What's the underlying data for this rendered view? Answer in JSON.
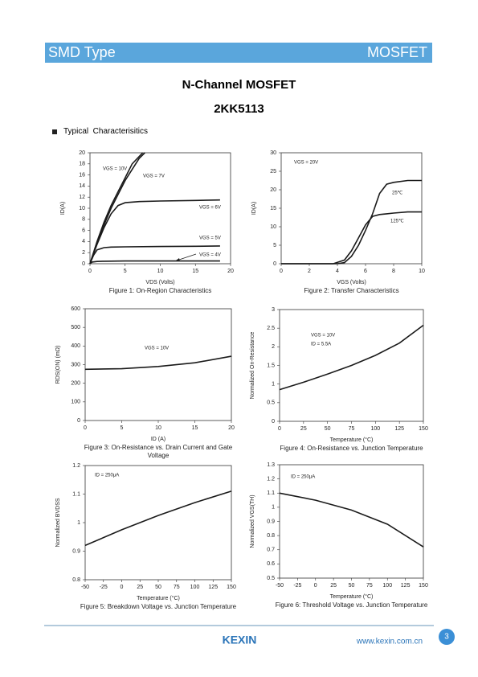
{
  "header": {
    "left": "SMD Type",
    "right": "MOSFET"
  },
  "title": "N-Channel MOSFET",
  "part": "2KK5113",
  "section": "Typical  Characterisitics",
  "footer": {
    "logo": "KEXIN",
    "url": "www.kexin.com.cn",
    "page": "3"
  },
  "chart_data": [
    {
      "type": "line",
      "title": "Figure 1: On-Region Characteristics",
      "xlabel": "VDS (Volts)",
      "ylabel": "ID(A)",
      "color": "#1a1a1a",
      "xlim": [
        0,
        20
      ],
      "ylim": [
        0,
        20
      ],
      "xticks": [
        0,
        5,
        10,
        15,
        20
      ],
      "yticks": [
        0,
        2,
        4,
        6,
        8,
        10,
        12,
        14,
        16,
        18,
        20
      ],
      "series": [
        {
          "name": "VGS = 10V",
          "x": [
            0,
            1,
            2,
            3,
            4,
            5,
            6,
            7.5
          ],
          "values": [
            0,
            4,
            7.5,
            10.5,
            13,
            15.5,
            18,
            20
          ]
        },
        {
          "name": "VGS = 7V",
          "x": [
            0,
            1,
            2,
            3,
            4,
            5,
            6,
            7,
            7.8
          ],
          "values": [
            0,
            3.8,
            7,
            10,
            12.5,
            15,
            17,
            19,
            20
          ]
        },
        {
          "name": "VGS = 6V",
          "x": [
            0,
            1,
            2,
            3,
            4,
            5,
            7,
            10,
            15,
            18.5
          ],
          "values": [
            0,
            3.5,
            6.5,
            9,
            10.5,
            11,
            11.2,
            11.3,
            11.4,
            11.5
          ]
        },
        {
          "name": "VGS = 5V",
          "x": [
            0,
            0.5,
            1,
            2,
            3,
            5,
            10,
            15,
            18.5
          ],
          "values": [
            0,
            1.5,
            2.5,
            2.9,
            3,
            3.05,
            3.1,
            3.15,
            3.2
          ]
        },
        {
          "name": "VGS = 4V",
          "x": [
            0,
            0.3,
            1,
            2,
            5,
            10,
            15,
            18.5
          ],
          "values": [
            0,
            0.3,
            0.4,
            0.45,
            0.5,
            0.5,
            0.5,
            0.5
          ]
        }
      ]
    },
    {
      "type": "line",
      "title": "Figure 2: Transfer Characteristics",
      "xlabel": "VGS (Volts)",
      "ylabel": "ID(A)",
      "color": "#1a1a1a",
      "xlim": [
        0,
        10
      ],
      "ylim": [
        0,
        30
      ],
      "xticks": [
        0,
        2,
        4,
        6,
        8,
        10
      ],
      "yticks": [
        0,
        5,
        10,
        15,
        20,
        25,
        30
      ],
      "annotations": [
        "VGS = 20V"
      ],
      "series": [
        {
          "name": "25℃",
          "x": [
            0,
            3,
            4,
            4.5,
            5,
            5.5,
            6,
            6.5,
            7,
            7.5,
            8,
            9,
            10
          ],
          "values": [
            0,
            0,
            0,
            0.3,
            2,
            5,
            9,
            13.5,
            19,
            21.5,
            22,
            22.5,
            22.5
          ]
        },
        {
          "name": "125℃",
          "x": [
            0,
            3,
            3.7,
            4.5,
            5,
            5.5,
            6,
            6.5,
            7,
            7.5,
            8,
            9,
            10
          ],
          "values": [
            0,
            0,
            0,
            1,
            3.5,
            7,
            10.5,
            12.8,
            13.3,
            13.5,
            13.7,
            14,
            14
          ]
        }
      ]
    },
    {
      "type": "line",
      "title": "Figure 3: On-Resistance vs. Drain Current and Gate Voltage",
      "xlabel": "ID (A)",
      "ylabel": "RDS(ON) (mΩ)",
      "color": "#1a1a1a",
      "xlim": [
        0,
        20
      ],
      "ylim": [
        0,
        600
      ],
      "xticks": [
        0,
        5,
        10,
        15,
        20
      ],
      "yticks": [
        0,
        100,
        200,
        300,
        400,
        500,
        600
      ],
      "annotations": [
        "VGS = 10V"
      ],
      "series": [
        {
          "x": [
            0,
            5,
            10,
            15,
            20
          ],
          "values": [
            275,
            278,
            290,
            310,
            345
          ]
        }
      ]
    },
    {
      "type": "line",
      "title": "Figure 4: On-Resistance vs. Junction Temperature",
      "xlabel": "Temperature (°C)",
      "ylabel": "Normalized On-Resistance",
      "color": "#1a1a1a",
      "xlim": [
        0,
        150
      ],
      "ylim": [
        0,
        3
      ],
      "xticks": [
        0,
        25,
        50,
        75,
        100,
        125,
        150
      ],
      "yticks": [
        0,
        0.5,
        1,
        1.5,
        2,
        2.5,
        3
      ],
      "annotations": [
        "VGS = 10V",
        "ID = 5.5A"
      ],
      "series": [
        {
          "x": [
            0,
            25,
            50,
            75,
            100,
            125,
            150
          ],
          "values": [
            0.85,
            1.05,
            1.27,
            1.5,
            1.77,
            2.1,
            2.58
          ]
        }
      ]
    },
    {
      "type": "line",
      "title": "Figure 5: Breakdown Voltage vs. Junction Temperature",
      "xlabel": "Temperature (°C)",
      "ylabel": "Normalized BVDSS",
      "color": "#1a1a1a",
      "xlim": [
        -50,
        150
      ],
      "ylim": [
        0.8,
        1.2
      ],
      "xticks": [
        -50,
        -25,
        0,
        25,
        50,
        75,
        100,
        125,
        150
      ],
      "yticks": [
        0.8,
        0.9,
        1,
        1.1,
        1.2
      ],
      "annotations": [
        "ID = 250μA"
      ],
      "series": [
        {
          "x": [
            -50,
            0,
            50,
            100,
            150
          ],
          "values": [
            0.92,
            0.975,
            1.025,
            1.07,
            1.11
          ]
        }
      ]
    },
    {
      "type": "line",
      "title": "Figure 6: Threshold Voltage vs. Junction Temperature",
      "xlabel": "Temperature (°C)",
      "ylabel": "Normalized VGS(TH)",
      "color": "#1a1a1a",
      "xlim": [
        -50,
        150
      ],
      "ylim": [
        0.5,
        1.3
      ],
      "xticks": [
        -50,
        -25,
        0,
        25,
        50,
        75,
        100,
        125,
        150
      ],
      "yticks": [
        0.5,
        0.6,
        0.7,
        0.8,
        0.9,
        1,
        1.1,
        1.2,
        1.3
      ],
      "annotations": [
        "ID = 250μA"
      ],
      "series": [
        {
          "x": [
            -50,
            0,
            50,
            100,
            150
          ],
          "values": [
            1.1,
            1.05,
            0.98,
            0.88,
            0.72
          ]
        }
      ]
    }
  ]
}
